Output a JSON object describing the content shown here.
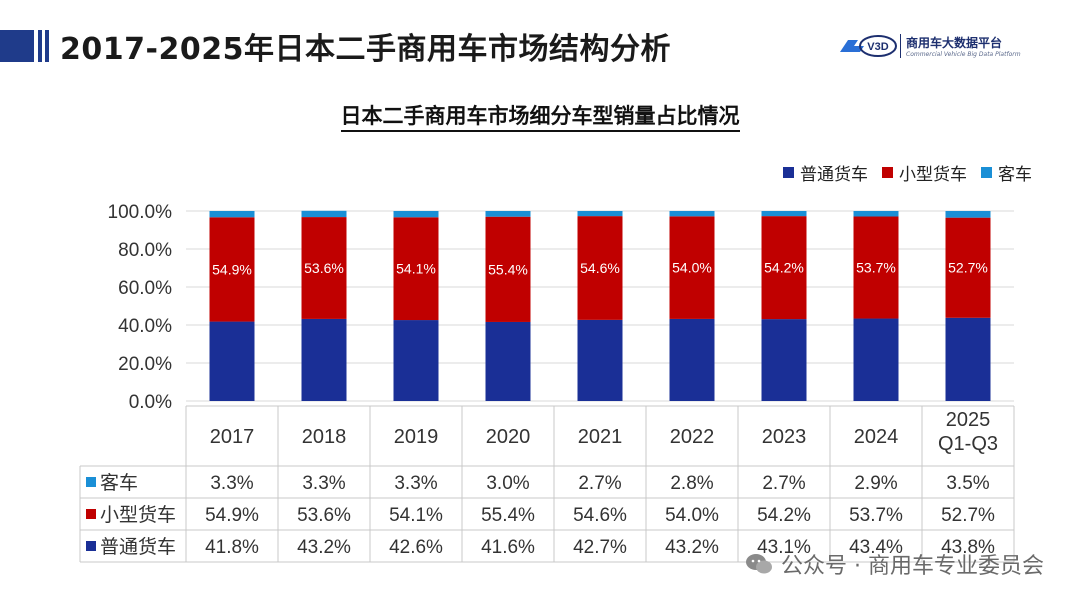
{
  "header": {
    "title": "2017-2025年日本二手商用车市场结构分析",
    "logo_mark": "V3D",
    "logo_cn": "商用车大数据平台",
    "logo_en": "Commercial Vehicle Big Data Platform"
  },
  "watermark": {
    "text": "公众号 · 商用车专业委员会"
  },
  "colors": {
    "bus": "#1a8fd6",
    "light_truck": "#c00000",
    "regular_truck": "#1a2f96",
    "title_bar": "#1f3b8a"
  },
  "chart_data": {
    "type": "bar",
    "stacked": true,
    "title": "日本二手商用车市场细分车型销量占比情况",
    "categories": [
      "2017",
      "2018",
      "2019",
      "2020",
      "2021",
      "2022",
      "2023",
      "2024",
      "2025\nQ1-Q3"
    ],
    "series": [
      {
        "name": "普通货车",
        "values": [
          41.8,
          43.2,
          42.6,
          41.6,
          42.7,
          43.2,
          43.1,
          43.4,
          43.8
        ],
        "color": "#1a2f96"
      },
      {
        "name": "小型货车",
        "values": [
          54.9,
          53.6,
          54.1,
          55.4,
          54.6,
          54.0,
          54.2,
          53.7,
          52.7
        ],
        "color": "#c00000"
      },
      {
        "name": "客车",
        "values": [
          3.3,
          3.3,
          3.3,
          3.0,
          2.7,
          2.8,
          2.7,
          2.9,
          3.5
        ],
        "color": "#1a8fd6"
      }
    ],
    "legend_order": [
      "普通货车",
      "小型货车",
      "客车"
    ],
    "data_label_series": "小型货车",
    "yticks": [
      "0.0%",
      "20.0%",
      "40.0%",
      "60.0%",
      "80.0%",
      "100.0%"
    ],
    "ylim": [
      0,
      100
    ],
    "grid": true,
    "legend_position": "top-right",
    "data_table": {
      "rows": [
        {
          "name": "客车",
          "values": [
            "3.3%",
            "3.3%",
            "3.3%",
            "3.0%",
            "2.7%",
            "2.8%",
            "2.7%",
            "2.9%",
            "3.5%"
          ]
        },
        {
          "name": "小型货车",
          "values": [
            "54.9%",
            "53.6%",
            "54.1%",
            "55.4%",
            "54.6%",
            "54.0%",
            "54.2%",
            "53.7%",
            "52.7%"
          ]
        },
        {
          "name": "普通货车",
          "values": [
            "41.8%",
            "43.2%",
            "42.6%",
            "41.6%",
            "42.7%",
            "43.2%",
            "43.1%",
            "43.4%",
            "43.8%"
          ]
        }
      ]
    }
  }
}
